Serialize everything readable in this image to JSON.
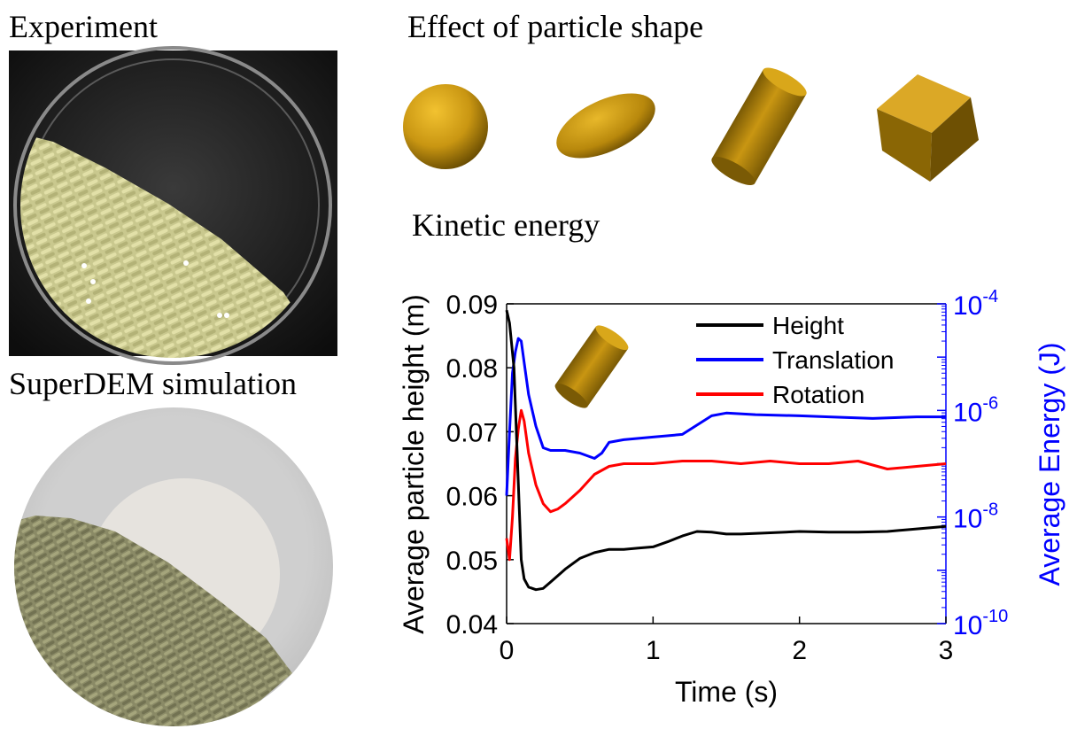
{
  "labels": {
    "experiment": "Experiment",
    "simulation": "SuperDEM simulation",
    "shape_effect": "Effect of particle shape",
    "kinetic_energy": "Kinetic energy"
  },
  "shapes": [
    "sphere",
    "ellipsoid",
    "cylinder",
    "cube"
  ],
  "colors": {
    "particle": "#b8860b",
    "height": "#000000",
    "translation": "#0000ff",
    "rotation": "#ff0000",
    "right_axis": "#0000ff"
  },
  "chart_data": {
    "type": "line",
    "xlabel": "Time (s)",
    "ylabel": "Average particle height (m)",
    "ylabel_right": "Average Energy (J)",
    "xlim": [
      0,
      3
    ],
    "ylim": [
      0.04,
      0.09
    ],
    "ylim_right_log10": [
      -10,
      -4
    ],
    "x_ticks": [
      "0",
      "1",
      "2",
      "3"
    ],
    "y_ticks": [
      "0.04",
      "0.05",
      "0.06",
      "0.07",
      "0.08",
      "0.09"
    ],
    "y_right_ticks": [
      {
        "base": "10",
        "exp": "-4"
      },
      {
        "base": "10",
        "exp": "-6"
      },
      {
        "base": "10",
        "exp": "-8"
      },
      {
        "base": "10",
        "exp": "-10"
      }
    ],
    "legend_position": "top-right",
    "series": [
      {
        "name": "Height",
        "axis": "left",
        "x": [
          0,
          0.02,
          0.05,
          0.08,
          0.1,
          0.12,
          0.15,
          0.2,
          0.25,
          0.3,
          0.4,
          0.5,
          0.6,
          0.7,
          0.8,
          0.9,
          1.0,
          1.1,
          1.2,
          1.3,
          1.4,
          1.5,
          1.6,
          1.8,
          2.0,
          2.2,
          2.4,
          2.6,
          2.8,
          3.0
        ],
        "y": [
          0.089,
          0.087,
          0.08,
          0.062,
          0.05,
          0.047,
          0.0457,
          0.0453,
          0.0455,
          0.0465,
          0.0485,
          0.0502,
          0.0511,
          0.0516,
          0.0516,
          0.0518,
          0.052,
          0.0528,
          0.0537,
          0.0544,
          0.0543,
          0.054,
          0.054,
          0.0542,
          0.0544,
          0.0543,
          0.0543,
          0.0544,
          0.0548,
          0.0552
        ]
      },
      {
        "name": "Translation",
        "axis": "right",
        "x": [
          0,
          0.02,
          0.04,
          0.06,
          0.08,
          0.1,
          0.12,
          0.15,
          0.2,
          0.25,
          0.3,
          0.4,
          0.5,
          0.6,
          0.65,
          0.7,
          0.8,
          1.0,
          1.2,
          1.4,
          1.5,
          1.7,
          2.0,
          2.2,
          2.5,
          2.8,
          3.0
        ],
        "y": [
          -7.6,
          -6.4,
          -5.3,
          -4.9,
          -4.65,
          -4.7,
          -5.1,
          -5.7,
          -6.3,
          -6.7,
          -6.75,
          -6.75,
          -6.8,
          -6.9,
          -6.8,
          -6.6,
          -6.55,
          -6.5,
          -6.45,
          -6.1,
          -6.05,
          -6.08,
          -6.1,
          -6.12,
          -6.15,
          -6.12,
          -6.12
        ]
      },
      {
        "name": "Rotation",
        "axis": "right",
        "x": [
          0,
          0.02,
          0.04,
          0.06,
          0.08,
          0.1,
          0.12,
          0.15,
          0.2,
          0.25,
          0.3,
          0.35,
          0.4,
          0.5,
          0.6,
          0.7,
          0.8,
          1.0,
          1.2,
          1.4,
          1.6,
          1.8,
          2.0,
          2.2,
          2.4,
          2.6,
          2.8,
          3.0
        ],
        "y": [
          -8.4,
          -8.8,
          -8.0,
          -6.9,
          -6.35,
          -6.0,
          -6.2,
          -6.8,
          -7.4,
          -7.75,
          -7.9,
          -7.85,
          -7.75,
          -7.5,
          -7.2,
          -7.05,
          -7.0,
          -7.0,
          -6.95,
          -6.95,
          -7.0,
          -6.95,
          -7.0,
          -7.0,
          -6.95,
          -7.1,
          -7.05,
          -7.0
        ]
      }
    ]
  }
}
